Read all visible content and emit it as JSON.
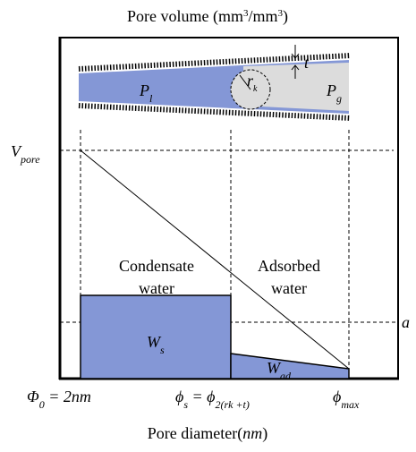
{
  "y_axis_label": {
    "text": "Pore volume (mm",
    "sup": "3",
    "text2": "/mm",
    "sup2": "3",
    "text3": ")"
  },
  "x_axis_label": {
    "text": "Pore diameter(",
    "italic": "nm",
    "text2": ")"
  },
  "pore": {
    "liquid": {
      "main": "P",
      "sub": "l"
    },
    "gas": {
      "main": "P",
      "sub": "g"
    },
    "radius": {
      "main": "r",
      "sub": "k"
    },
    "thickness": "t"
  },
  "levels": {
    "v_pore": {
      "main": "V",
      "sub": "pore"
    },
    "a": "a"
  },
  "regions": {
    "condensate": [
      "Condensate",
      "water"
    ],
    "adsorbed": [
      "Adsorbed",
      "water"
    ],
    "w_s": {
      "main": "W",
      "sub": "s"
    },
    "w_ad": {
      "main": "W",
      "sub": "ad"
    }
  },
  "x_marks": {
    "phi0": {
      "main": "Φ",
      "sub": "0",
      "rest": " = 2nm"
    },
    "phis": {
      "main": "ϕ",
      "sub": "s",
      "mid": " = ϕ",
      "sub2": "2(rk +t)"
    },
    "phimax": {
      "main": "ϕ",
      "sub": "max"
    }
  }
}
